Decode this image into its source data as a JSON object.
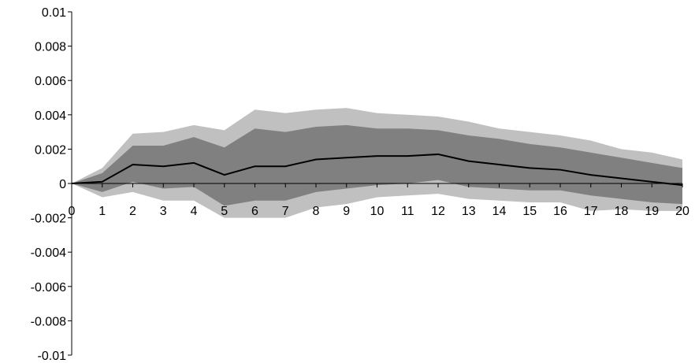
{
  "chart_data": {
    "type": "area",
    "title": "",
    "xlabel": "",
    "ylabel": "",
    "grid": false,
    "legend": "none",
    "x": [
      0,
      1,
      2,
      3,
      4,
      5,
      6,
      7,
      8,
      9,
      10,
      11,
      12,
      13,
      14,
      15,
      16,
      17,
      18,
      19,
      20
    ],
    "xticks": [
      "0",
      "1",
      "2",
      "3",
      "4",
      "5",
      "6",
      "7",
      "8",
      "9",
      "10",
      "11",
      "12",
      "13",
      "14",
      "15",
      "16",
      "17",
      "18",
      "19",
      "20"
    ],
    "xlim": [
      0,
      20
    ],
    "ylim": [
      -0.01,
      0.01
    ],
    "yticks": [
      0.01,
      0.008,
      0.006,
      0.004,
      0.002,
      0,
      -0.002,
      -0.004,
      -0.006,
      -0.008,
      -0.01
    ],
    "ytick_labels": [
      "0.01",
      "0.008",
      "0.006",
      "0.004",
      "0.002",
      "0",
      "-0.002",
      "-0.004",
      "-0.006",
      "-0.008",
      "-0.01"
    ],
    "bands": [
      {
        "color": "#c0c0c0",
        "upper": [
          0,
          0.0009,
          0.0029,
          0.003,
          0.0034,
          0.0031,
          0.0043,
          0.0041,
          0.0043,
          0.0044,
          0.0041,
          0.004,
          0.0039,
          0.0036,
          0.0032,
          0.003,
          0.0028,
          0.0025,
          0.002,
          0.0018,
          0.0014
        ],
        "lower": [
          0,
          -0.0008,
          -0.0005,
          -0.001,
          -0.001,
          -0.002,
          -0.002,
          -0.002,
          -0.0014,
          -0.0012,
          -0.0008,
          -0.0007,
          -0.0006,
          -0.0009,
          -0.001,
          -0.0011,
          -0.0011,
          -0.0016,
          -0.0015,
          -0.0016,
          -0.0016
        ]
      },
      {
        "color": "#808080",
        "upper": [
          0,
          0.0006,
          0.0022,
          0.0022,
          0.0027,
          0.0021,
          0.0032,
          0.003,
          0.0033,
          0.0034,
          0.0032,
          0.0032,
          0.0031,
          0.0028,
          0.0026,
          0.0023,
          0.0021,
          0.0018,
          0.0015,
          0.0012,
          0.0009
        ],
        "lower": [
          0,
          -0.0005,
          0.0001,
          -0.0003,
          -0.0002,
          -0.0013,
          -0.001,
          -0.001,
          -0.0005,
          -0.0003,
          -0.0001,
          0,
          0.0002,
          -0.0002,
          -0.0003,
          -0.0004,
          -0.0004,
          -0.0007,
          -0.0009,
          -0.0011,
          -0.0012
        ]
      }
    ],
    "series": [
      {
        "color": "#000000",
        "values": [
          0,
          0.0001,
          0.0011,
          0.001,
          0.0012,
          0.0005,
          0.001,
          0.001,
          0.0014,
          0.0015,
          0.0016,
          0.0016,
          0.0017,
          0.0013,
          0.0011,
          0.0009,
          0.0008,
          0.0005,
          0.0003,
          0.0001,
          -0.0001
        ]
      }
    ],
    "axis_color": "#000000"
  }
}
